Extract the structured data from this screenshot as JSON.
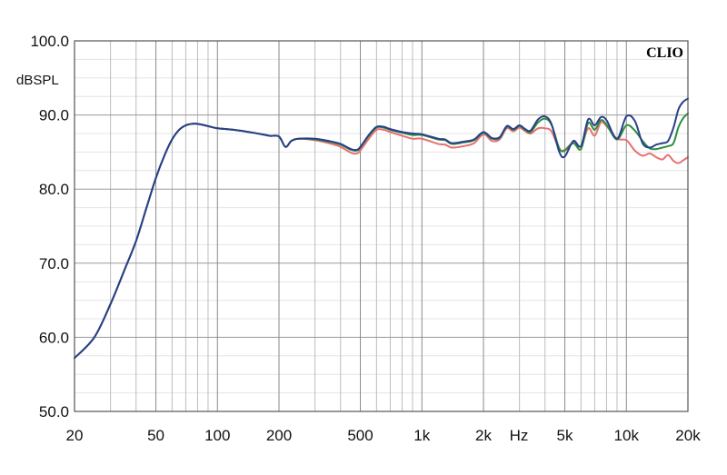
{
  "chart_data": {
    "type": "line",
    "brand": "CLIO",
    "ylabel": "dBSPL",
    "xlabel": "Hz",
    "x_scale": "log",
    "xlim": [
      20,
      20000
    ],
    "ylim": [
      50,
      100
    ],
    "grid": true,
    "y_ticks": [
      {
        "value": 100,
        "label": "100.0"
      },
      {
        "value": 90,
        "label": "90.0"
      },
      {
        "value": 80,
        "label": "80.0"
      },
      {
        "value": 70,
        "label": "70.0"
      },
      {
        "value": 60,
        "label": "60.0"
      },
      {
        "value": 50,
        "label": "50.0"
      }
    ],
    "x_ticks": [
      {
        "value": 20,
        "label": "20"
      },
      {
        "value": 50,
        "label": "50"
      },
      {
        "value": 100,
        "label": "100"
      },
      {
        "value": 200,
        "label": "200"
      },
      {
        "value": 500,
        "label": "500"
      },
      {
        "value": 1000,
        "label": "1k"
      },
      {
        "value": 2000,
        "label": "2k"
      },
      {
        "value": 5000,
        "label": "5k"
      },
      {
        "value": 10000,
        "label": "10k"
      },
      {
        "value": 20000,
        "label": "20k"
      }
    ],
    "minor_x": [
      30,
      40,
      60,
      70,
      80,
      90,
      300,
      400,
      600,
      700,
      800,
      900,
      3000,
      4000,
      6000,
      7000,
      8000,
      9000
    ],
    "minor_y": [
      52.5,
      55,
      57.5,
      62.5,
      65,
      67.5,
      72.5,
      75,
      77.5,
      82.5,
      85,
      87.5,
      92.5,
      95,
      97.5
    ],
    "series": [
      {
        "color": "#e87070",
        "points": [
          [
            20,
            57.2
          ],
          [
            25,
            60
          ],
          [
            30,
            64.5
          ],
          [
            35,
            69
          ],
          [
            40,
            73
          ],
          [
            45,
            77.5
          ],
          [
            50,
            81.5
          ],
          [
            55,
            84.5
          ],
          [
            60,
            86.7
          ],
          [
            65,
            88
          ],
          [
            70,
            88.6
          ],
          [
            75,
            88.8
          ],
          [
            80,
            88.8
          ],
          [
            90,
            88.5
          ],
          [
            100,
            88.2
          ],
          [
            120,
            88.0
          ],
          [
            150,
            87.6
          ],
          [
            180,
            87.2
          ],
          [
            200,
            87.1
          ],
          [
            215,
            85.7
          ],
          [
            230,
            86.5
          ],
          [
            250,
            86.8
          ],
          [
            300,
            86.6
          ],
          [
            350,
            86.2
          ],
          [
            400,
            85.7
          ],
          [
            450,
            84.9
          ],
          [
            480,
            84.8
          ],
          [
            500,
            85.2
          ],
          [
            550,
            86.8
          ],
          [
            600,
            88.0
          ],
          [
            650,
            88.0
          ],
          [
            700,
            87.7
          ],
          [
            800,
            87.2
          ],
          [
            900,
            86.8
          ],
          [
            1000,
            86.8
          ],
          [
            1200,
            86.1
          ],
          [
            1300,
            86.0
          ],
          [
            1400,
            85.6
          ],
          [
            1600,
            85.8
          ],
          [
            1800,
            86.2
          ],
          [
            2000,
            87.4
          ],
          [
            2200,
            86.5
          ],
          [
            2400,
            86.7
          ],
          [
            2600,
            88.2
          ],
          [
            2800,
            87.8
          ],
          [
            3000,
            88.3
          ],
          [
            3200,
            87.8
          ],
          [
            3400,
            87.5
          ],
          [
            3700,
            88.2
          ],
          [
            4000,
            88.2
          ],
          [
            4300,
            87.8
          ],
          [
            4700,
            85.4
          ],
          [
            5000,
            85.3
          ],
          [
            5500,
            86.3
          ],
          [
            6000,
            85.8
          ],
          [
            6500,
            88.2
          ],
          [
            7000,
            87.2
          ],
          [
            7500,
            89.0
          ],
          [
            8000,
            88.5
          ],
          [
            9000,
            86.8
          ],
          [
            10000,
            86.6
          ],
          [
            11000,
            85.2
          ],
          [
            12000,
            84.5
          ],
          [
            13000,
            84.8
          ],
          [
            14000,
            84.3
          ],
          [
            15000,
            84.0
          ],
          [
            16000,
            84.6
          ],
          [
            17000,
            83.8
          ],
          [
            18000,
            83.5
          ],
          [
            19000,
            83.9
          ],
          [
            20000,
            84.3
          ]
        ]
      },
      {
        "color": "#2c8f3c",
        "points": [
          [
            20,
            57.2
          ],
          [
            25,
            60
          ],
          [
            30,
            64.5
          ],
          [
            35,
            69
          ],
          [
            40,
            73
          ],
          [
            45,
            77.5
          ],
          [
            50,
            81.5
          ],
          [
            55,
            84.5
          ],
          [
            60,
            86.7
          ],
          [
            65,
            88
          ],
          [
            70,
            88.6
          ],
          [
            75,
            88.8
          ],
          [
            80,
            88.8
          ],
          [
            90,
            88.5
          ],
          [
            100,
            88.2
          ],
          [
            120,
            88.0
          ],
          [
            150,
            87.6
          ],
          [
            180,
            87.2
          ],
          [
            200,
            87.1
          ],
          [
            215,
            85.7
          ],
          [
            230,
            86.5
          ],
          [
            250,
            86.8
          ],
          [
            300,
            86.7
          ],
          [
            350,
            86.4
          ],
          [
            400,
            86.0
          ],
          [
            450,
            85.3
          ],
          [
            480,
            85.2
          ],
          [
            500,
            85.6
          ],
          [
            550,
            87.2
          ],
          [
            600,
            88.3
          ],
          [
            650,
            88.3
          ],
          [
            700,
            88.0
          ],
          [
            800,
            87.6
          ],
          [
            900,
            87.3
          ],
          [
            1000,
            87.3
          ],
          [
            1200,
            86.7
          ],
          [
            1300,
            86.6
          ],
          [
            1400,
            86.1
          ],
          [
            1600,
            86.3
          ],
          [
            1800,
            86.6
          ],
          [
            2000,
            87.6
          ],
          [
            2200,
            86.8
          ],
          [
            2400,
            86.9
          ],
          [
            2600,
            88.4
          ],
          [
            2800,
            88.0
          ],
          [
            3000,
            88.5
          ],
          [
            3200,
            88.0
          ],
          [
            3400,
            87.7
          ],
          [
            3700,
            89.0
          ],
          [
            4000,
            89.5
          ],
          [
            4300,
            88.7
          ],
          [
            4700,
            85.5
          ],
          [
            5000,
            85.2
          ],
          [
            5500,
            86.2
          ],
          [
            6000,
            85.4
          ],
          [
            6500,
            88.9
          ],
          [
            7000,
            88.0
          ],
          [
            7500,
            89.3
          ],
          [
            8000,
            88.7
          ],
          [
            9000,
            86.7
          ],
          [
            10000,
            88.6
          ],
          [
            11000,
            87.9
          ],
          [
            12000,
            86.5
          ],
          [
            13000,
            85.5
          ],
          [
            14000,
            85.4
          ],
          [
            15000,
            85.6
          ],
          [
            16000,
            85.8
          ],
          [
            17000,
            86.2
          ],
          [
            18000,
            88.4
          ],
          [
            19000,
            89.6
          ],
          [
            20000,
            90.2
          ]
        ]
      },
      {
        "color": "#2a3f8c",
        "points": [
          [
            20,
            57.2
          ],
          [
            25,
            60
          ],
          [
            30,
            64.5
          ],
          [
            35,
            69
          ],
          [
            40,
            73
          ],
          [
            45,
            77.5
          ],
          [
            50,
            81.5
          ],
          [
            55,
            84.5
          ],
          [
            60,
            86.7
          ],
          [
            65,
            88
          ],
          [
            70,
            88.6
          ],
          [
            75,
            88.8
          ],
          [
            80,
            88.8
          ],
          [
            90,
            88.5
          ],
          [
            100,
            88.2
          ],
          [
            120,
            88.0
          ],
          [
            150,
            87.6
          ],
          [
            180,
            87.2
          ],
          [
            200,
            87.1
          ],
          [
            215,
            85.7
          ],
          [
            230,
            86.5
          ],
          [
            250,
            86.8
          ],
          [
            300,
            86.8
          ],
          [
            350,
            86.5
          ],
          [
            400,
            86.1
          ],
          [
            450,
            85.4
          ],
          [
            480,
            85.3
          ],
          [
            500,
            85.7
          ],
          [
            550,
            87.3
          ],
          [
            600,
            88.4
          ],
          [
            650,
            88.4
          ],
          [
            700,
            88.1
          ],
          [
            800,
            87.7
          ],
          [
            900,
            87.5
          ],
          [
            1000,
            87.4
          ],
          [
            1200,
            86.8
          ],
          [
            1300,
            86.7
          ],
          [
            1400,
            86.2
          ],
          [
            1600,
            86.4
          ],
          [
            1800,
            86.7
          ],
          [
            2000,
            87.7
          ],
          [
            2200,
            86.9
          ],
          [
            2400,
            87.0
          ],
          [
            2600,
            88.5
          ],
          [
            2800,
            88.1
          ],
          [
            3000,
            88.6
          ],
          [
            3200,
            88.1
          ],
          [
            3400,
            87.9
          ],
          [
            3700,
            89.4
          ],
          [
            4000,
            89.8
          ],
          [
            4300,
            88.8
          ],
          [
            4700,
            85.0
          ],
          [
            5000,
            84.4
          ],
          [
            5500,
            86.5
          ],
          [
            6000,
            85.8
          ],
          [
            6500,
            89.4
          ],
          [
            7000,
            88.6
          ],
          [
            7500,
            89.7
          ],
          [
            8000,
            89.3
          ],
          [
            9000,
            86.8
          ],
          [
            10000,
            89.8
          ],
          [
            11000,
            89.2
          ],
          [
            12000,
            86.2
          ],
          [
            13000,
            85.6
          ],
          [
            14000,
            86.0
          ],
          [
            15000,
            86.2
          ],
          [
            16000,
            86.5
          ],
          [
            17000,
            88.3
          ],
          [
            18000,
            90.8
          ],
          [
            19000,
            91.8
          ],
          [
            20000,
            92.2
          ]
        ]
      }
    ]
  }
}
